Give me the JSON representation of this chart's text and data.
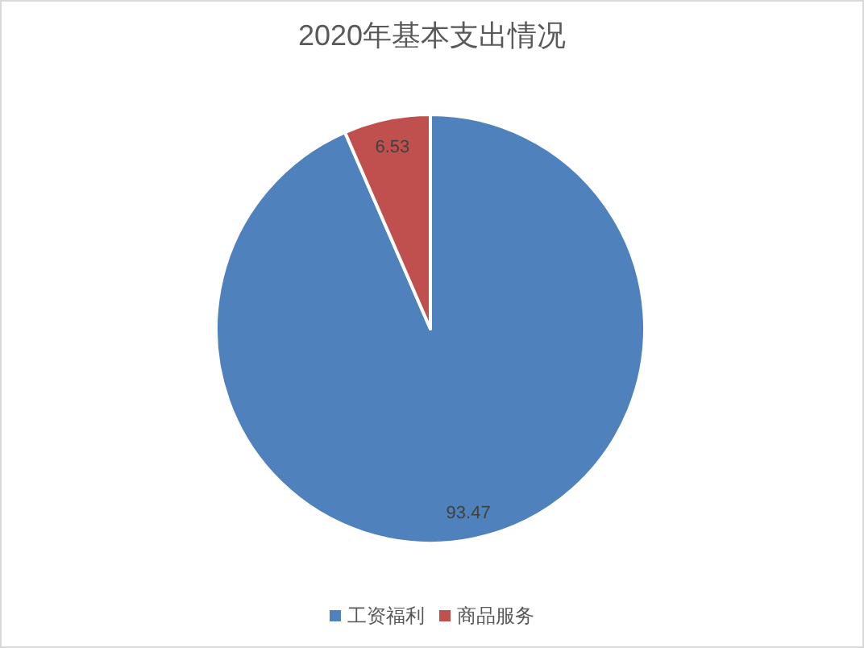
{
  "chart_data": {
    "type": "pie",
    "title": "2020年基本支出情况",
    "categories": [
      "工资福利",
      "商品服务"
    ],
    "values": [
      93.47,
      6.53
    ],
    "colors": [
      "#4f81bd",
      "#c0504d"
    ],
    "data_labels": true,
    "legend": "bottom"
  }
}
